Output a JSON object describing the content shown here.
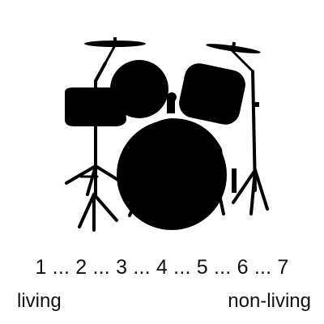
{
  "image": {
    "icon": "drum-kit-silhouette-icon",
    "fill_color": "#000000",
    "background_color": "#ffffff"
  },
  "scale": {
    "text": "1 ... 2 ... 3 ... 4 ... 5 ... 6 ... 7",
    "left_label": "living",
    "right_label": "non-living"
  }
}
